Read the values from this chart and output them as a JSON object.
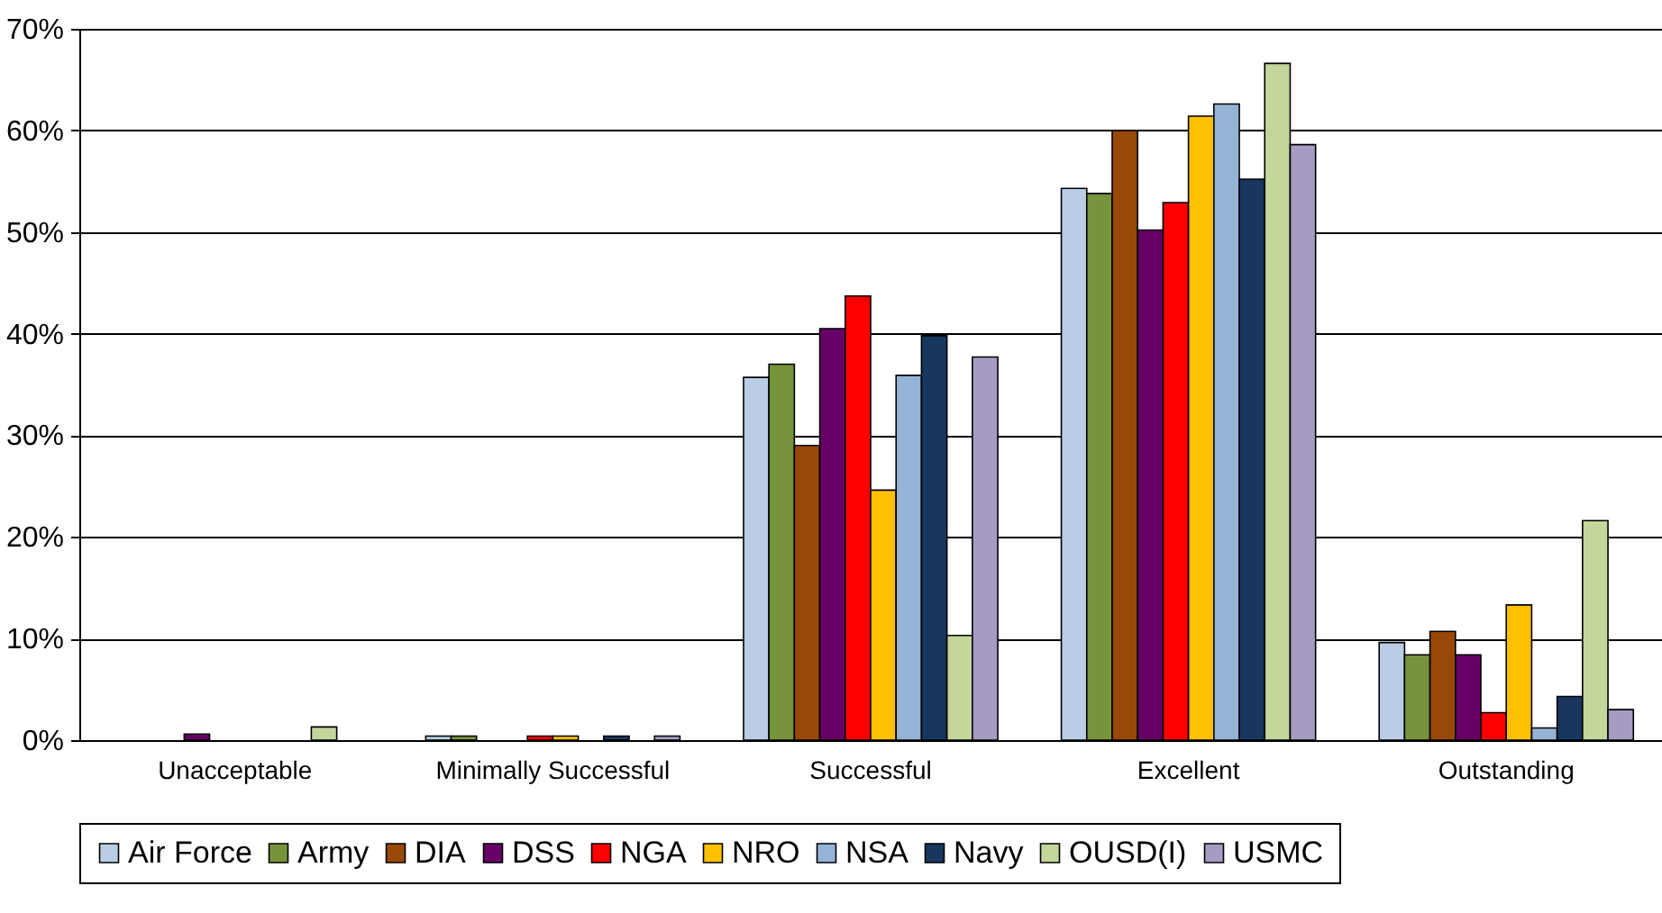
{
  "chart_data": {
    "type": "bar",
    "categories": [
      "Unacceptable",
      "Minimally Successful",
      "Successful",
      "Excellent",
      "Outstanding"
    ],
    "series": [
      {
        "name": "Air Force",
        "color": "#b9cde5",
        "values": [
          0,
          0.4,
          35.7,
          54.3,
          9.6
        ]
      },
      {
        "name": "Army",
        "color": "#77933c",
        "values": [
          0,
          0.4,
          37,
          53.8,
          8.4
        ]
      },
      {
        "name": "DIA",
        "color": "#984807",
        "values": [
          0,
          0,
          29,
          60,
          10.7
        ]
      },
      {
        "name": "DSS",
        "color": "#660066",
        "values": [
          0.6,
          0,
          40.5,
          50.2,
          8.4
        ]
      },
      {
        "name": "NGA",
        "color": "#ff0000",
        "values": [
          0,
          0.4,
          43.7,
          52.9,
          2.7
        ]
      },
      {
        "name": "NRO",
        "color": "#ffc000",
        "values": [
          0,
          0.4,
          24.6,
          61.4,
          13.3
        ]
      },
      {
        "name": "NSA",
        "color": "#95b3d7",
        "values": [
          0,
          0,
          35.9,
          62.6,
          1.2
        ]
      },
      {
        "name": "Navy",
        "color": "#17375e",
        "values": [
          0,
          0.4,
          39.8,
          55.2,
          4.3
        ]
      },
      {
        "name": "OUSD(I)",
        "color": "#c3d69b",
        "values": [
          1.3,
          0,
          10.3,
          66.6,
          21.6
        ]
      },
      {
        "name": "USMC",
        "color": "#a59bc3",
        "values": [
          0,
          0.4,
          37.7,
          58.6,
          3.0
        ]
      }
    ],
    "ylim": [
      0,
      70
    ],
    "yticks": [
      {
        "value": 0,
        "label": "0%"
      },
      {
        "value": 10,
        "label": "10%"
      },
      {
        "value": 20,
        "label": "20%"
      },
      {
        "value": 30,
        "label": "30%"
      },
      {
        "value": 40,
        "label": "40%"
      },
      {
        "value": 50,
        "label": "50%"
      },
      {
        "value": 60,
        "label": "60%"
      },
      {
        "value": 70,
        "label": "70%"
      }
    ],
    "grid": "y",
    "legend": "bottom"
  }
}
